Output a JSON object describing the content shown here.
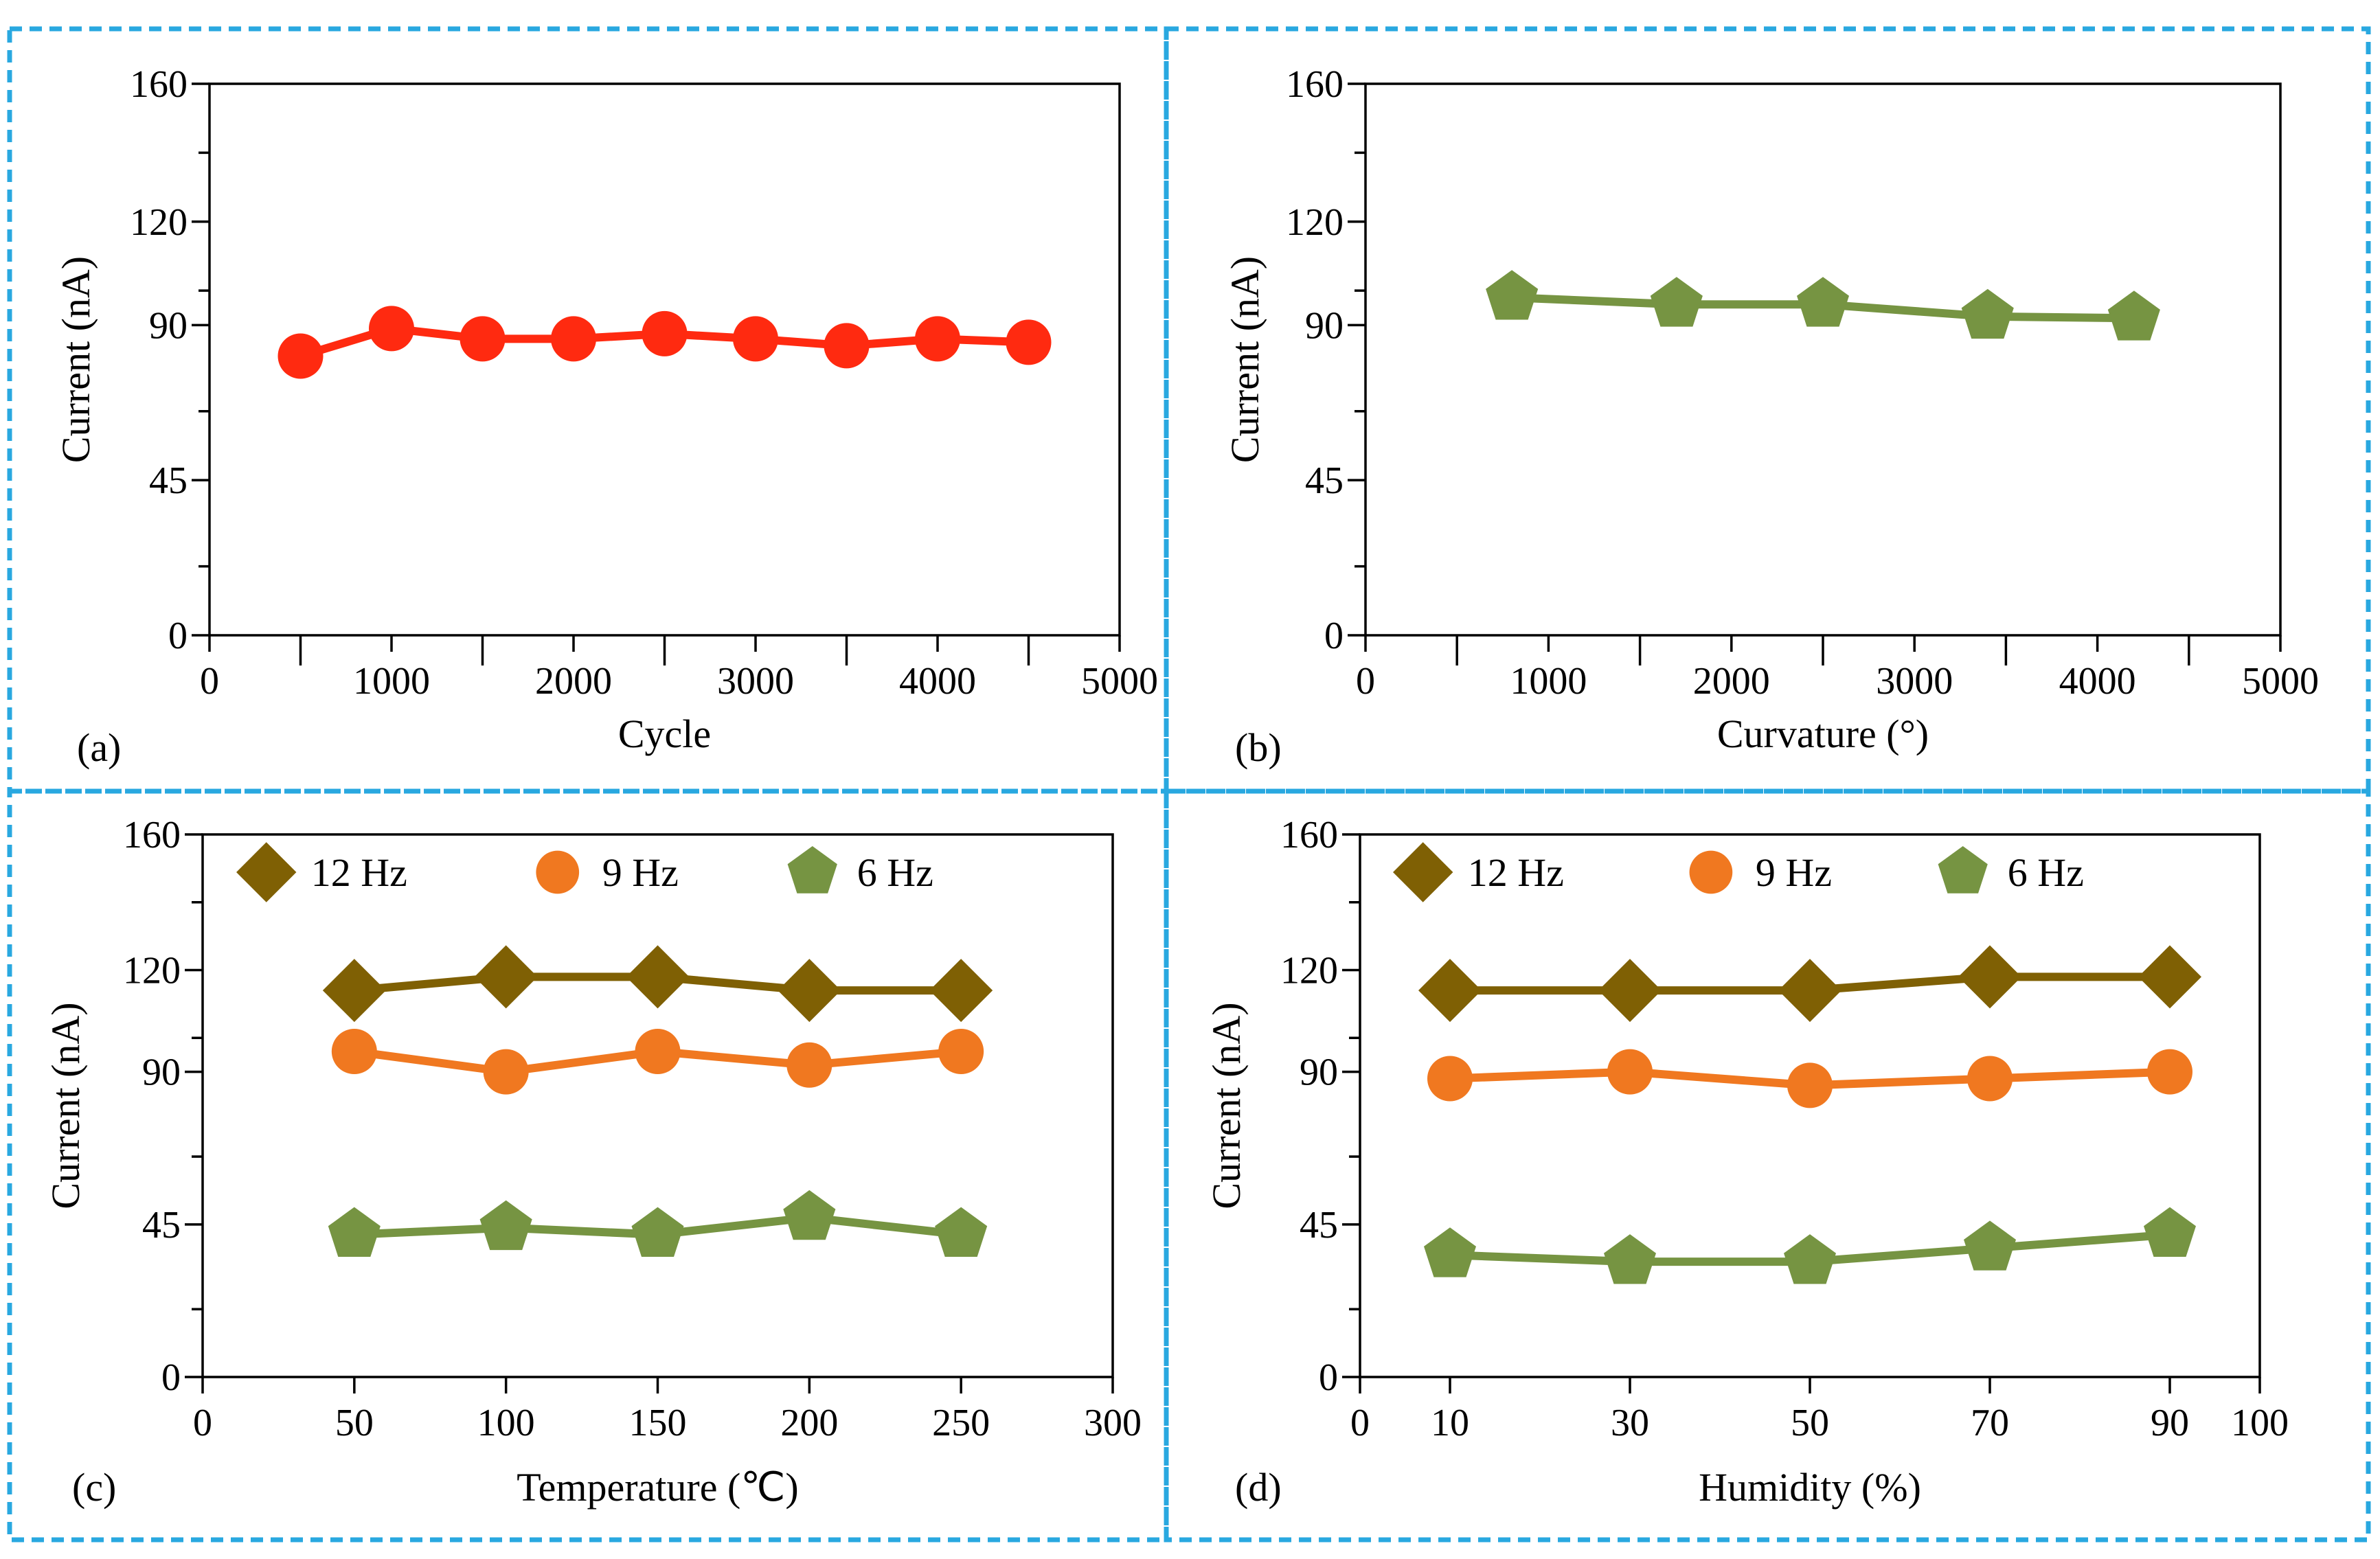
{
  "colors": {
    "frame": "#29a8e0",
    "red": "#ff2a10",
    "orange": "#f07820",
    "green": "#769442",
    "brown": "#7f6004"
  },
  "chart_data": [
    {
      "type": "line",
      "panel_label": "(a)",
      "title": "",
      "xlabel": "Cycle",
      "ylabel": "Current (nA)",
      "xlim": [
        0,
        5000
      ],
      "ylim": [
        0,
        160
      ],
      "xticks": [
        0,
        1000,
        2000,
        3000,
        4000,
        5000
      ],
      "xminor": [
        500,
        1500,
        2500,
        3500,
        4500
      ],
      "yticks": [
        0,
        45,
        90,
        120,
        160
      ],
      "yminor": [
        20,
        65,
        100,
        140
      ],
      "legend": null,
      "series": [
        {
          "name": "",
          "color": "#ff2a10",
          "marker": "circle",
          "x": [
            500,
            1000,
            1500,
            2000,
            2500,
            3000,
            3500,
            4000,
            4500
          ],
          "y": [
            81,
            89,
            86,
            86,
            87.5,
            86,
            84,
            86,
            85
          ]
        }
      ]
    },
    {
      "type": "line",
      "panel_label": "(b)",
      "title": "",
      "xlabel": "Curvature (°)",
      "ylabel": "Current (nA)",
      "xlim": [
        0,
        5000
      ],
      "ylim": [
        0,
        160
      ],
      "xticks": [
        0,
        1000,
        2000,
        3000,
        4000,
        5000
      ],
      "xminor": [
        500,
        1500,
        2500,
        3500,
        4500
      ],
      "yticks": [
        0,
        45,
        90,
        120,
        160
      ],
      "yminor": [
        20,
        65,
        100,
        140
      ],
      "legend": null,
      "series": [
        {
          "name": "",
          "color": "#769442",
          "marker": "pentagon",
          "x": [
            800,
            1700,
            2500,
            3400,
            4200
          ],
          "y": [
            98,
            96,
            96,
            92.5,
            92
          ]
        }
      ]
    },
    {
      "type": "line",
      "panel_label": "(c)",
      "title": "",
      "xlabel": "Temperature (℃)",
      "ylabel": "Current (nA)",
      "xlim": [
        0,
        300
      ],
      "ylim": [
        0,
        160
      ],
      "xticks": [
        0,
        50,
        100,
        150,
        200,
        250,
        300
      ],
      "xminor": [],
      "yticks": [
        0,
        45,
        90,
        120,
        160
      ],
      "yminor": [
        20,
        65,
        100,
        140
      ],
      "legend": "top",
      "series": [
        {
          "name": "12 Hz",
          "color": "#7f6004",
          "marker": "diamond",
          "x": [
            50,
            100,
            150,
            200,
            250
          ],
          "y": [
            114,
            118,
            118,
            114,
            114
          ]
        },
        {
          "name": "9 Hz",
          "color": "#f07820",
          "marker": "circle",
          "x": [
            50,
            100,
            150,
            200,
            250
          ],
          "y": [
            96,
            90,
            96,
            92,
            96
          ]
        },
        {
          "name": "6 Hz",
          "color": "#769442",
          "marker": "pentagon",
          "x": [
            50,
            100,
            150,
            200,
            250
          ],
          "y": [
            42,
            44,
            42,
            47,
            42
          ]
        }
      ]
    },
    {
      "type": "line",
      "panel_label": "(d)",
      "title": "",
      "xlabel": "Humidity (%)",
      "ylabel": "Current (nA)",
      "xlim": [
        0,
        100
      ],
      "ylim": [
        0,
        160
      ],
      "xticks": [
        0,
        10,
        30,
        50,
        70,
        90,
        100
      ],
      "xminor": [],
      "yticks": [
        0,
        45,
        90,
        120,
        160
      ],
      "yminor": [
        20,
        65,
        100,
        140
      ],
      "legend": "top",
      "series": [
        {
          "name": "12 Hz",
          "color": "#7f6004",
          "marker": "diamond",
          "x": [
            10,
            30,
            50,
            70,
            90
          ],
          "y": [
            114,
            114,
            114,
            118,
            118
          ]
        },
        {
          "name": "9 Hz",
          "color": "#f07820",
          "marker": "circle",
          "x": [
            10,
            30,
            50,
            70,
            90
          ],
          "y": [
            88,
            90,
            86,
            88,
            90
          ]
        },
        {
          "name": "6 Hz",
          "color": "#769442",
          "marker": "pentagon",
          "x": [
            10,
            30,
            50,
            70,
            90
          ],
          "y": [
            36,
            34,
            34,
            38,
            42
          ]
        }
      ]
    }
  ]
}
